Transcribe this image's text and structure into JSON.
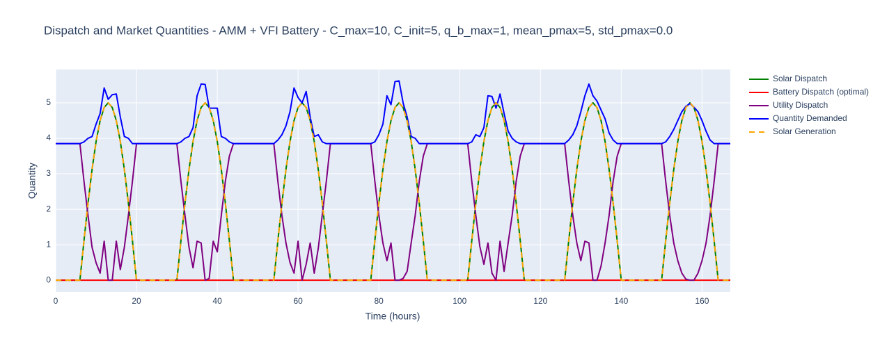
{
  "chart_data": {
    "type": "line",
    "title": "Dispatch and Market Quantities  - AMM + VFI Battery - C_max=10, C_init=5, q_b_max=1, mean_pmax=5, std_pmax=0.0",
    "x_label": "Time (hours)",
    "y_label": "Quantity",
    "xlim": [
      0,
      167
    ],
    "ylim": [
      -0.33,
      5.94
    ],
    "xticks": [
      0,
      20,
      40,
      60,
      80,
      100,
      120,
      140,
      160
    ],
    "yticks": [
      0,
      1,
      2,
      3,
      4,
      5
    ],
    "grid": true,
    "legend": "right",
    "x": [
      0,
      1,
      2,
      3,
      4,
      5,
      6,
      7,
      8,
      9,
      10,
      11,
      12,
      13,
      14,
      15,
      16,
      17,
      18,
      19,
      20,
      21,
      22,
      23,
      24,
      25,
      26,
      27,
      28,
      29,
      30,
      31,
      32,
      33,
      34,
      35,
      36,
      37,
      38,
      39,
      40,
      41,
      42,
      43,
      44,
      45,
      46,
      47,
      48,
      49,
      50,
      51,
      52,
      53,
      54,
      55,
      56,
      57,
      58,
      59,
      60,
      61,
      62,
      63,
      64,
      65,
      66,
      67,
      68,
      69,
      70,
      71,
      72,
      73,
      74,
      75,
      76,
      77,
      78,
      79,
      80,
      81,
      82,
      83,
      84,
      85,
      86,
      87,
      88,
      89,
      90,
      91,
      92,
      93,
      94,
      95,
      96,
      97,
      98,
      99,
      100,
      101,
      102,
      103,
      104,
      105,
      106,
      107,
      108,
      109,
      110,
      111,
      112,
      113,
      114,
      115,
      116,
      117,
      118,
      119,
      120,
      121,
      122,
      123,
      124,
      125,
      126,
      127,
      128,
      129,
      130,
      131,
      132,
      133,
      134,
      135,
      136,
      137,
      138,
      139,
      140,
      141,
      142,
      143,
      144,
      145,
      146,
      147,
      148,
      149,
      150,
      151,
      152,
      153,
      154,
      155,
      156,
      157,
      158,
      159,
      160,
      161,
      162,
      163,
      164,
      165,
      166,
      167
    ],
    "series": [
      {
        "name": "Solar Dispatch",
        "color": "green",
        "values": [
          0,
          0,
          0,
          0,
          0,
          0,
          0,
          1.11,
          2.17,
          3.12,
          3.91,
          4.5,
          4.87,
          5,
          4.87,
          4.5,
          3.91,
          3.12,
          2.17,
          1.11,
          0,
          0,
          0,
          0,
          0,
          0,
          0,
          0,
          0,
          0,
          0,
          1.11,
          2.17,
          3.12,
          3.91,
          4.5,
          4.87,
          5,
          4.87,
          4.5,
          3.91,
          3.12,
          2.17,
          1.11,
          0,
          0,
          0,
          0,
          0,
          0,
          0,
          0,
          0,
          0,
          0,
          1.11,
          2.17,
          3.12,
          3.91,
          4.5,
          4.87,
          5,
          4.87,
          4.5,
          3.91,
          3.12,
          2.17,
          1.11,
          0,
          0,
          0,
          0,
          0,
          0,
          0,
          0,
          0,
          0,
          0,
          1.11,
          2.17,
          3.12,
          3.91,
          4.5,
          4.87,
          5,
          4.87,
          4.5,
          3.91,
          3.12,
          2.17,
          1.11,
          0,
          0,
          0,
          0,
          0,
          0,
          0,
          0,
          0,
          0,
          0,
          1.11,
          2.17,
          3.12,
          3.91,
          4.5,
          4.87,
          5,
          4.87,
          4.5,
          3.91,
          3.12,
          2.17,
          1.11,
          0,
          0,
          0,
          0,
          0,
          0,
          0,
          0,
          0,
          0,
          0,
          1.11,
          2.17,
          3.12,
          3.91,
          4.5,
          4.87,
          5,
          4.87,
          4.5,
          3.91,
          3.12,
          2.17,
          1.11,
          0,
          0,
          0,
          0,
          0,
          0,
          0,
          0,
          0,
          0,
          0,
          1.11,
          2.17,
          3.12,
          3.91,
          4.5,
          4.87,
          5,
          4.87,
          4.5,
          3.91,
          3.12,
          2.17,
          1.11,
          0,
          0,
          0,
          0
        ]
      },
      {
        "name": "Battery Dispatch (optimal)",
        "color": "red",
        "values": [
          0,
          0,
          0,
          0,
          0,
          0,
          0,
          0,
          0,
          0,
          0,
          0,
          0,
          0,
          0,
          0,
          0,
          0,
          0,
          0,
          0,
          0,
          0,
          0,
          0,
          0,
          0,
          0,
          0,
          0,
          0,
          0,
          0,
          0,
          0,
          0,
          0,
          0,
          0,
          0,
          0,
          0,
          0,
          0,
          0,
          0,
          0,
          0,
          0,
          0,
          0,
          0,
          0,
          0,
          0,
          0,
          0,
          0,
          0,
          0,
          0,
          0,
          0,
          0,
          0,
          0,
          0,
          0,
          0,
          0,
          0,
          0,
          0,
          0,
          0,
          0,
          0,
          0,
          0,
          0,
          0,
          0,
          0,
          0,
          0,
          0,
          0,
          0,
          0,
          0,
          0,
          0,
          0,
          0,
          0,
          0,
          0,
          0,
          0,
          0,
          0,
          0,
          0,
          0,
          0,
          0,
          0,
          0,
          0,
          0,
          0,
          0,
          0,
          0,
          0,
          0,
          0,
          0,
          0,
          0,
          0,
          0,
          0,
          0,
          0,
          0,
          0,
          0,
          0,
          0,
          0,
          0,
          0,
          0,
          0,
          0,
          0,
          0,
          0,
          0,
          0,
          0,
          0,
          0,
          0,
          0,
          0,
          0,
          0,
          0,
          0,
          0,
          0,
          0,
          0,
          0,
          0,
          0,
          0,
          0,
          0,
          0,
          0,
          0,
          0,
          0,
          0,
          0
        ]
      },
      {
        "name": "Utility Dispatch",
        "color": "purple",
        "values": [
          3.85,
          3.85,
          3.85,
          3.85,
          3.85,
          3.85,
          3.85,
          2.79,
          1.83,
          0.93,
          0.49,
          0.2,
          1.1,
          0,
          0,
          1.1,
          0.3,
          0.93,
          1.83,
          2.79,
          3.85,
          3.85,
          3.85,
          3.85,
          3.85,
          3.85,
          3.85,
          3.85,
          3.85,
          3.85,
          3.85,
          2.79,
          1.83,
          0.93,
          0.35,
          1.1,
          1.05,
          0,
          0.05,
          1.1,
          0.8,
          1.83,
          2.79,
          3.5,
          3.85,
          3.85,
          3.85,
          3.85,
          3.85,
          3.85,
          3.85,
          3.85,
          3.85,
          3.85,
          3.85,
          2.79,
          1.83,
          1.05,
          0.5,
          0.2,
          1.1,
          0,
          0.45,
          1.05,
          0.2,
          0.9,
          1.85,
          2.79,
          3.85,
          3.85,
          3.85,
          3.85,
          3.85,
          3.85,
          3.85,
          3.85,
          3.85,
          3.85,
          3.85,
          2.79,
          1.83,
          1.05,
          0.55,
          1.05,
          0,
          0,
          0.05,
          0.25,
          1.05,
          1.83,
          2.79,
          3.5,
          3.85,
          3.85,
          3.85,
          3.85,
          3.85,
          3.85,
          3.85,
          3.85,
          3.85,
          3.85,
          3.85,
          2.79,
          1.83,
          0.95,
          0.45,
          1.05,
          0.2,
          0,
          1.1,
          0.25,
          1.05,
          1.83,
          2.79,
          3.5,
          3.85,
          3.85,
          3.85,
          3.85,
          3.85,
          3.85,
          3.85,
          3.85,
          3.85,
          3.85,
          3.85,
          2.79,
          1.83,
          1.05,
          0.55,
          1.1,
          1.05,
          0,
          0,
          0.4,
          1.05,
          1.83,
          2.79,
          3.5,
          3.85,
          3.85,
          3.85,
          3.85,
          3.85,
          3.85,
          3.85,
          3.85,
          3.85,
          3.85,
          3.85,
          2.79,
          1.83,
          1.05,
          0.55,
          0.2,
          0.03,
          0,
          0,
          0.2,
          0.55,
          1.05,
          1.83,
          2.79,
          3.85,
          3.85,
          3.85,
          3.85
        ]
      },
      {
        "name": "Quantity Demanded",
        "color": "blue",
        "values": [
          3.85,
          3.85,
          3.85,
          3.85,
          3.85,
          3.85,
          3.85,
          3.9,
          4.0,
          4.05,
          4.4,
          4.7,
          5.42,
          5.1,
          5.23,
          5.25,
          4.6,
          4.05,
          4.0,
          3.85,
          3.85,
          3.85,
          3.85,
          3.85,
          3.85,
          3.85,
          3.85,
          3.85,
          3.85,
          3.85,
          3.85,
          3.9,
          4.0,
          4.05,
          4.3,
          5.2,
          5.53,
          5.52,
          4.85,
          4.85,
          4.85,
          4.05,
          4.0,
          3.9,
          3.85,
          3.85,
          3.85,
          3.85,
          3.85,
          3.85,
          3.85,
          3.85,
          3.85,
          3.85,
          3.85,
          3.95,
          4.1,
          4.35,
          4.75,
          5.42,
          5.15,
          5.0,
          5.32,
          4.6,
          4.05,
          4.1,
          3.9,
          3.85,
          3.85,
          3.85,
          3.85,
          3.85,
          3.85,
          3.85,
          3.85,
          3.85,
          3.85,
          3.85,
          3.85,
          3.9,
          4.1,
          4.4,
          5.2,
          4.95,
          5.6,
          5.62,
          5.0,
          4.6,
          4.05,
          4.0,
          3.85,
          3.85,
          3.85,
          3.85,
          3.85,
          3.85,
          3.85,
          3.85,
          3.85,
          3.85,
          3.85,
          3.85,
          3.85,
          3.9,
          4.1,
          4.05,
          4.3,
          5.2,
          5.18,
          4.85,
          5.25,
          4.7,
          4.2,
          4.0,
          3.9,
          3.85,
          3.85,
          3.85,
          3.85,
          3.85,
          3.85,
          3.85,
          3.85,
          3.85,
          3.85,
          3.85,
          3.85,
          3.95,
          4.1,
          4.35,
          4.75,
          5.2,
          5.53,
          5.2,
          5.05,
          4.8,
          4.55,
          4.15,
          3.95,
          3.85,
          3.85,
          3.85,
          3.85,
          3.85,
          3.85,
          3.85,
          3.85,
          3.85,
          3.85,
          3.85,
          3.85,
          3.9,
          4.05,
          4.25,
          4.5,
          4.75,
          4.9,
          4.98,
          4.88,
          4.75,
          4.5,
          4.2,
          3.95,
          3.85,
          3.85,
          3.85,
          3.85,
          3.85
        ]
      },
      {
        "name": "Solar Generation",
        "color": "orange",
        "dash": "dash",
        "values": [
          0,
          0,
          0,
          0,
          0,
          0,
          0,
          1.11,
          2.17,
          3.12,
          3.91,
          4.5,
          4.87,
          5,
          4.87,
          4.5,
          3.91,
          3.12,
          2.17,
          1.11,
          0,
          0,
          0,
          0,
          0,
          0,
          0,
          0,
          0,
          0,
          0,
          1.11,
          2.17,
          3.12,
          3.91,
          4.5,
          4.87,
          5,
          4.87,
          4.5,
          3.91,
          3.12,
          2.17,
          1.11,
          0,
          0,
          0,
          0,
          0,
          0,
          0,
          0,
          0,
          0,
          0,
          1.11,
          2.17,
          3.12,
          3.91,
          4.5,
          4.87,
          5,
          4.87,
          4.5,
          3.91,
          3.12,
          2.17,
          1.11,
          0,
          0,
          0,
          0,
          0,
          0,
          0,
          0,
          0,
          0,
          0,
          1.11,
          2.17,
          3.12,
          3.91,
          4.5,
          4.87,
          5,
          4.87,
          4.5,
          3.91,
          3.12,
          2.17,
          1.11,
          0,
          0,
          0,
          0,
          0,
          0,
          0,
          0,
          0,
          0,
          0,
          1.11,
          2.17,
          3.12,
          3.91,
          4.5,
          4.87,
          5,
          4.87,
          4.5,
          3.91,
          3.12,
          2.17,
          1.11,
          0,
          0,
          0,
          0,
          0,
          0,
          0,
          0,
          0,
          0,
          0,
          1.11,
          2.17,
          3.12,
          3.91,
          4.5,
          4.87,
          5,
          4.87,
          4.5,
          3.91,
          3.12,
          2.17,
          1.11,
          0,
          0,
          0,
          0,
          0,
          0,
          0,
          0,
          0,
          0,
          0,
          1.11,
          2.17,
          3.12,
          3.91,
          4.5,
          4.87,
          5,
          4.87,
          4.5,
          3.91,
          3.12,
          2.17,
          1.11,
          0,
          0,
          0,
          0
        ]
      }
    ]
  }
}
